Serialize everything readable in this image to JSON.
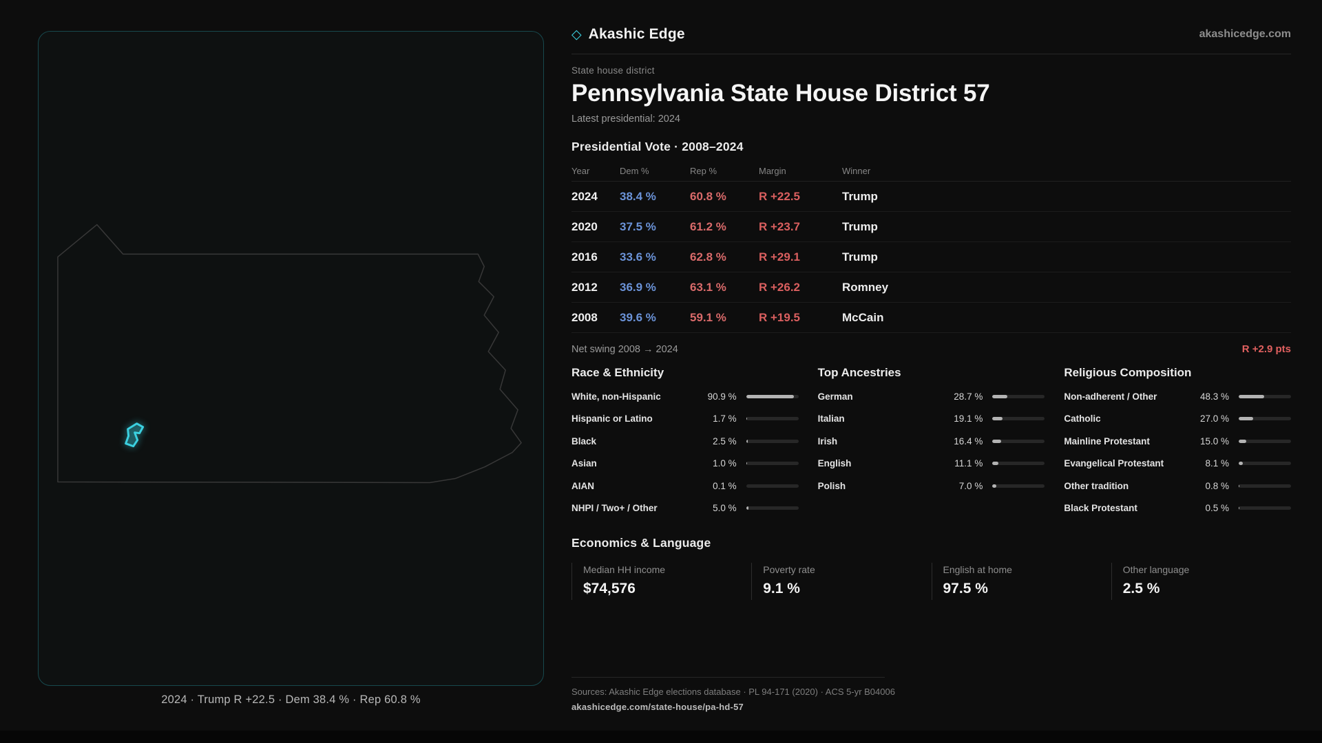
{
  "brand": {
    "glyph": "◇",
    "name": "Akashic Edge",
    "domain": "akashicedge.com"
  },
  "header": {
    "kicker": "State house district",
    "title": "Pennsylvania State House District 57",
    "subtitle": "Latest presidential: 2024"
  },
  "map": {
    "caption": "2024 · Trump R +22.5 · Dem 38.4 % · Rep 60.8 %",
    "highlight_color": "#3bd0e0",
    "outline_color": "#383838"
  },
  "vote_table": {
    "title": "Presidential Vote · 2008–2024",
    "columns": [
      "Year",
      "Dem %",
      "Rep %",
      "Margin",
      "Winner"
    ],
    "rows": [
      {
        "year": "2024",
        "dem": "38.4 %",
        "rep": "60.8 %",
        "margin": "R +22.5",
        "winner": "Trump"
      },
      {
        "year": "2020",
        "dem": "37.5 %",
        "rep": "61.2 %",
        "margin": "R +23.7",
        "winner": "Trump"
      },
      {
        "year": "2016",
        "dem": "33.6 %",
        "rep": "62.8 %",
        "margin": "R +29.1",
        "winner": "Trump"
      },
      {
        "year": "2012",
        "dem": "36.9 %",
        "rep": "63.1 %",
        "margin": "R +26.2",
        "winner": "Romney"
      },
      {
        "year": "2008",
        "dem": "39.6 %",
        "rep": "59.1 %",
        "margin": "R +19.5",
        "winner": "McCain"
      }
    ],
    "net_swing_label": "Net swing 2008 → 2024",
    "net_swing_value": "R +2.9 pts"
  },
  "demographics": {
    "race": {
      "title": "Race & Ethnicity",
      "rows": [
        {
          "label": "White, non-Hispanic",
          "value": "90.9 %",
          "pct": 90.9
        },
        {
          "label": "Hispanic or Latino",
          "value": "1.7 %",
          "pct": 1.7
        },
        {
          "label": "Black",
          "value": "2.5 %",
          "pct": 2.5
        },
        {
          "label": "Asian",
          "value": "1.0 %",
          "pct": 1.0
        },
        {
          "label": "AIAN",
          "value": "0.1 %",
          "pct": 0.1
        },
        {
          "label": "NHPI / Two+ / Other",
          "value": "5.0 %",
          "pct": 5.0
        }
      ]
    },
    "ancestries": {
      "title": "Top Ancestries",
      "rows": [
        {
          "label": "German",
          "value": "28.7 %",
          "pct": 28.7
        },
        {
          "label": "Italian",
          "value": "19.1 %",
          "pct": 19.1
        },
        {
          "label": "Irish",
          "value": "16.4 %",
          "pct": 16.4
        },
        {
          "label": "English",
          "value": "11.1 %",
          "pct": 11.1
        },
        {
          "label": "Polish",
          "value": "7.0 %",
          "pct": 7.0
        }
      ]
    },
    "religion": {
      "title": "Religious Composition",
      "rows": [
        {
          "label": "Non-adherent / Other",
          "value": "48.3 %",
          "pct": 48.3
        },
        {
          "label": "Catholic",
          "value": "27.0 %",
          "pct": 27.0
        },
        {
          "label": "Mainline Protestant",
          "value": "15.0 %",
          "pct": 15.0
        },
        {
          "label": "Evangelical Protestant",
          "value": "8.1 %",
          "pct": 8.1
        },
        {
          "label": "Other tradition",
          "value": "0.8 %",
          "pct": 0.8
        },
        {
          "label": "Black Protestant",
          "value": "0.5 %",
          "pct": 0.5
        }
      ]
    }
  },
  "economics": {
    "title": "Economics & Language",
    "stats": [
      {
        "label": "Median HH income",
        "value": "$74,576"
      },
      {
        "label": "Poverty rate",
        "value": "9.1 %"
      },
      {
        "label": "English at home",
        "value": "97.5 %"
      },
      {
        "label": "Other language",
        "value": "2.5 %"
      }
    ]
  },
  "footer": {
    "sources": "Sources: Akashic Edge elections database · PL 94-171 (2020) · ACS 5-yr B04006",
    "permalink": "akashicedge.com/state-house/pa-hd-57"
  },
  "colors": {
    "dem_blue": "#6b93d8",
    "rep_red": "#da5f5f",
    "accent_cyan": "#3bd0e0"
  }
}
